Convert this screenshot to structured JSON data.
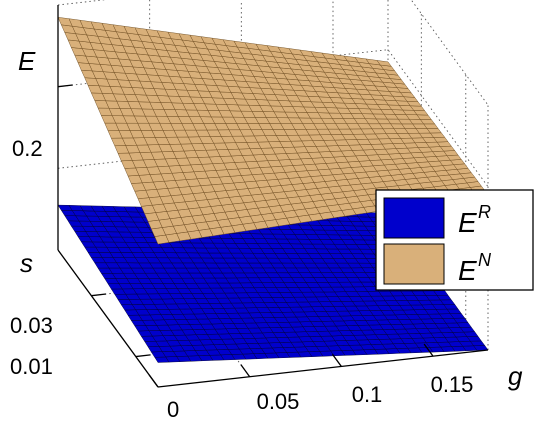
{
  "chart_data": {
    "type": "surface3d",
    "axes": {
      "g": {
        "label": "g",
        "ticks": [
          "0",
          "0.05",
          "0.1",
          "0.15"
        ],
        "range": [
          0,
          0.18
        ]
      },
      "s": {
        "label": "s",
        "ticks": [
          "0.01",
          "0.03"
        ],
        "range": [
          0,
          0.045
        ]
      },
      "E": {
        "label": "E",
        "ticks": [
          "0.2"
        ],
        "range": [
          0,
          0.3
        ]
      }
    },
    "series": [
      {
        "name": "E^R",
        "label_base": "E",
        "label_sup": "R",
        "color": "#0000cc",
        "edge_color": "#000033",
        "corners": {
          "g0_s0": 0.03,
          "g1_s0": 0.0,
          "g0_s1": 0.055,
          "g1_s1": 0.0
        }
      },
      {
        "name": "E^N",
        "label_base": "E",
        "label_sup": "N",
        "color": "#d9b07a",
        "edge_color": "#6b4a1e",
        "corners": {
          "g0_s0": 0.175,
          "g1_s0": 0.19,
          "g0_s1": 0.285,
          "g1_s1": 0.185
        }
      }
    ],
    "legend_position": "right",
    "grid": true,
    "view": "3d"
  }
}
